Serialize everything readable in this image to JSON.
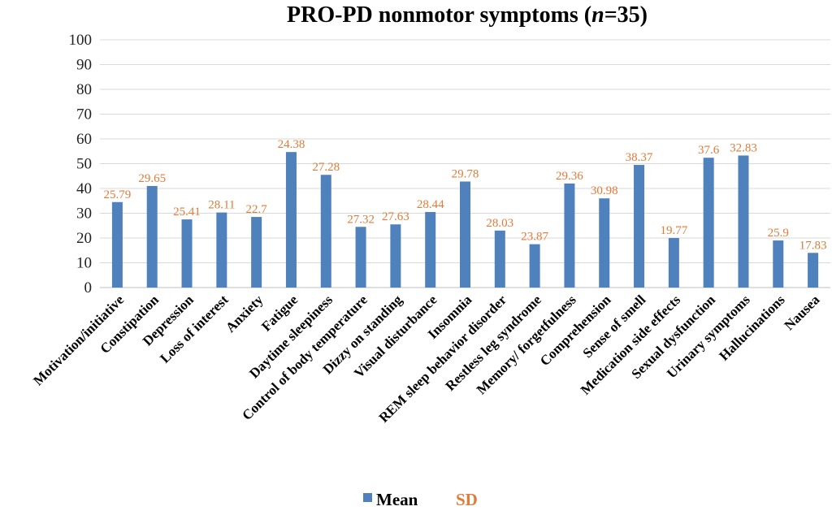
{
  "chart_data": {
    "type": "bar",
    "title_main": "PRO-PD nonmotor symptoms (",
    "title_italic": "n",
    "title_tail": "=35)",
    "ylim": [
      0,
      100
    ],
    "yticks": [
      0,
      10,
      20,
      30,
      40,
      50,
      60,
      70,
      80,
      90,
      100
    ],
    "grid": true,
    "legend_position": "bottom",
    "categories": [
      "Motivation/initiative",
      "Constipation",
      "Depression",
      "Loss of interest",
      "Anxiety",
      "Fatigue",
      "Daytime sleepiness",
      "Control of body temperature",
      "Dizzy on standing",
      "Visual disturbance",
      "Insomnia",
      "REM sleep behavior disorder",
      "Restless leg syndrome",
      "Memory/ forgetfulness",
      "Comprehension",
      "Sense of smell",
      "Medication side effects",
      "Sexual dysfunction",
      "Urinary symptoms",
      "Hallucinations",
      "Nausea"
    ],
    "series": [
      {
        "name": "Mean",
        "color": "#4f81bd",
        "values": [
          34.5,
          41,
          27.5,
          30.3,
          28.5,
          54.7,
          45.5,
          24.5,
          25.5,
          30.5,
          42.8,
          23,
          17.5,
          42,
          36,
          49.5,
          20,
          52.4,
          53.3,
          19,
          14
        ]
      },
      {
        "name": "SD",
        "color": "#e07b39",
        "values": [
          25.79,
          29.65,
          25.41,
          28.11,
          22.7,
          24.38,
          27.28,
          27.32,
          27.63,
          28.44,
          29.78,
          28.03,
          23.87,
          29.36,
          30.98,
          38.37,
          19.77,
          37.6,
          32.83,
          25.9,
          17.83
        ]
      }
    ],
    "sd_labels": [
      "25.79",
      "29.65",
      "25.41",
      "28.11",
      "22.7",
      "24.38",
      "27.28",
      "27.32",
      "27.63",
      "28.44",
      "29.78",
      "28.03",
      "23.87",
      "29.36",
      "30.98",
      "38.37",
      "19.77",
      "37.6",
      "32.83",
      "25.9",
      "17.83"
    ]
  }
}
